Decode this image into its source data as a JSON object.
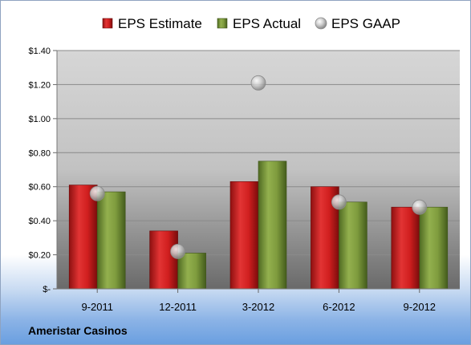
{
  "company": "Ameristar Casinos",
  "colors": {
    "estimate": "#cc1f1f",
    "actual": "#77953a",
    "gaap": "#b8b8b8"
  },
  "chart_data": {
    "type": "bar",
    "categories": [
      "9-2011",
      "12-2011",
      "3-2012",
      "6-2012",
      "9-2012"
    ],
    "series": [
      {
        "name": "EPS Estimate",
        "values": [
          0.61,
          0.34,
          0.63,
          0.6,
          0.48
        ]
      },
      {
        "name": "EPS Actual",
        "values": [
          0.57,
          0.21,
          0.75,
          0.51,
          0.48
        ]
      },
      {
        "name": "EPS GAAP",
        "values": [
          0.56,
          0.22,
          1.21,
          0.51,
          0.48
        ],
        "marker": "circle"
      }
    ],
    "yticks": [
      {
        "value": 0,
        "label": "$-"
      },
      {
        "value": 0.2,
        "label": "$0.20"
      },
      {
        "value": 0.4,
        "label": "$0.40"
      },
      {
        "value": 0.6,
        "label": "$0.60"
      },
      {
        "value": 0.8,
        "label": "$0.80"
      },
      {
        "value": 1.0,
        "label": "$1.00"
      },
      {
        "value": 1.2,
        "label": "$1.20"
      },
      {
        "value": 1.4,
        "label": "$1.40"
      }
    ],
    "ylim": [
      0,
      1.4
    ],
    "grid": true,
    "legend": "top"
  }
}
